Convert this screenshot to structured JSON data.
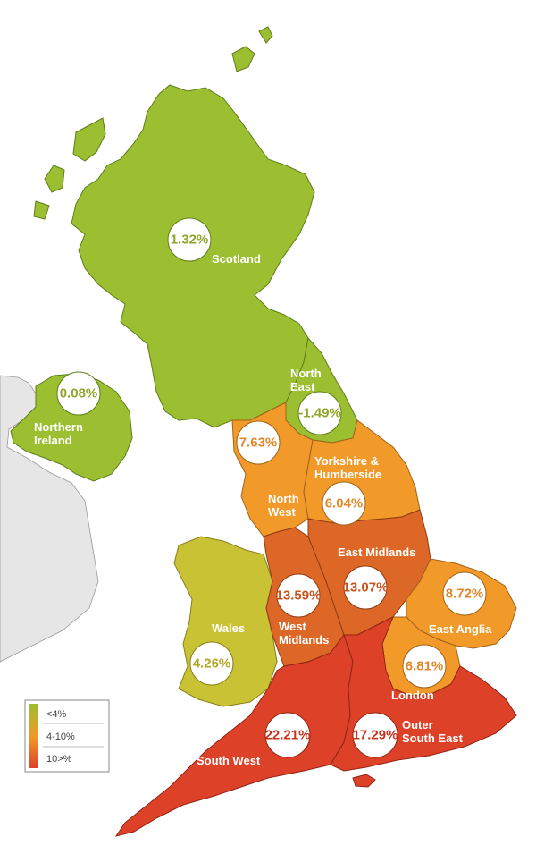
{
  "colors": {
    "green": "#9bbf30",
    "yellowgreen": "#c9c235",
    "orange": "#f19a2a",
    "darkorange": "#dd6726",
    "red": "#dd4228",
    "land": "#e6e6e6",
    "border": "#7a7a7a"
  },
  "regions": [
    {
      "id": "scotland",
      "label": "Scotland",
      "value": "1.32%",
      "band": "green"
    },
    {
      "id": "northern-ireland",
      "label_line1": "Northern",
      "label_line2": "Ireland",
      "value": "0.08%",
      "band": "green"
    },
    {
      "id": "north-east",
      "label_line1": "North",
      "label_line2": "East",
      "value": "-1.49%",
      "band": "green"
    },
    {
      "id": "north-west",
      "label_line1": "North",
      "label_line2": "West",
      "value": "7.63%",
      "band": "orange"
    },
    {
      "id": "yorkshire",
      "label_line1": "Yorkshire &",
      "label_line2": "Humberside",
      "value": "6.04%",
      "band": "orange"
    },
    {
      "id": "east-midlands",
      "label": "East Midlands",
      "value": "13.07%",
      "band": "darkorange"
    },
    {
      "id": "west-midlands",
      "label_line1": "West",
      "label_line2": "Midlands",
      "value": "13.59%",
      "band": "darkorange"
    },
    {
      "id": "wales",
      "label": "Wales",
      "value": "4.26%",
      "band": "yellowgreen"
    },
    {
      "id": "east-anglia",
      "label": "East Anglia",
      "value": "8.72%",
      "band": "orange"
    },
    {
      "id": "london",
      "label": "London",
      "value": "6.81%",
      "band": "orange"
    },
    {
      "id": "south-west",
      "label": "South West",
      "value": "22.21%",
      "band": "red"
    },
    {
      "id": "outer-south-east",
      "label_line1": "Outer",
      "label_line2": "South East",
      "value": "17.29%",
      "band": "red"
    }
  ],
  "legend": {
    "items": [
      "<4%",
      "4-10%",
      "10>%"
    ]
  }
}
